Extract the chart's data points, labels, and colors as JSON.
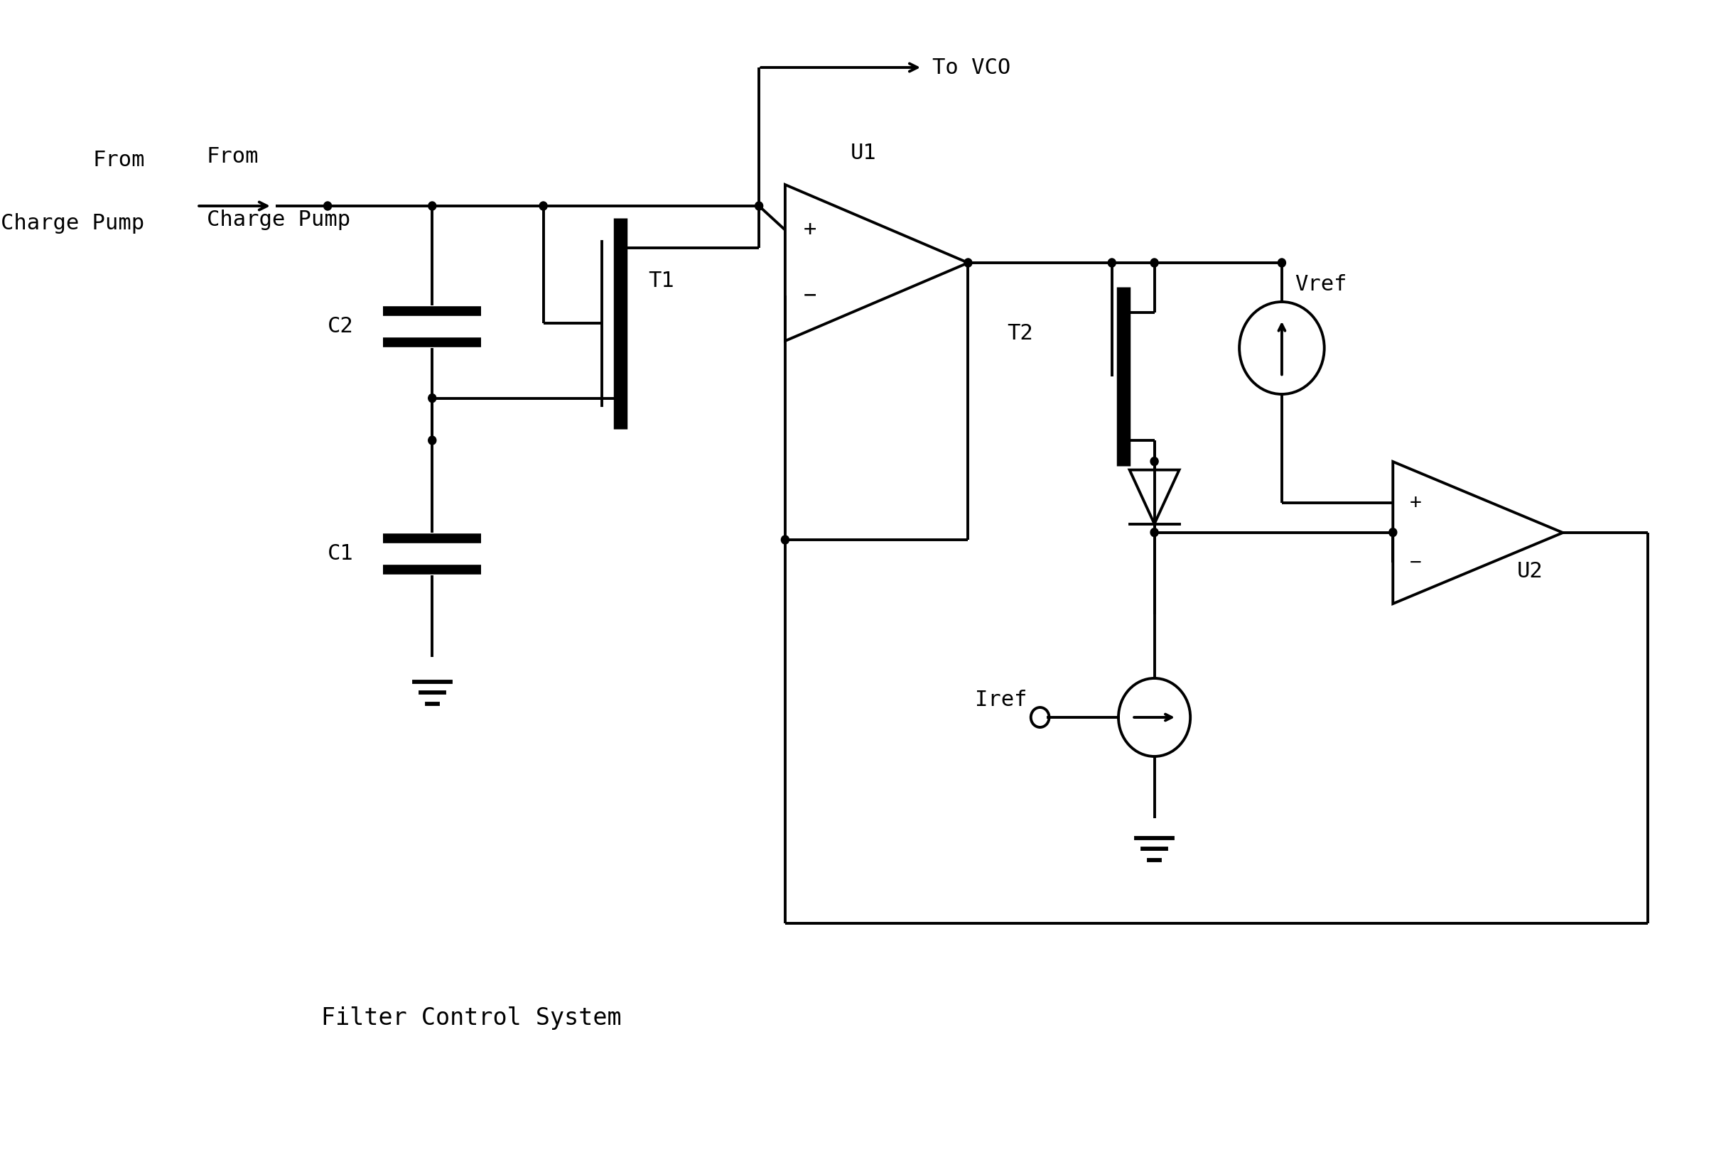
{
  "background_color": "#ffffff",
  "line_color": "#000000",
  "lw": 2.8,
  "dot_r": 6.0,
  "labels": {
    "from_charge_pump_1": "From",
    "from_charge_pump_2": "Charge Pump",
    "to_vco": "To VCO",
    "C2": "C2",
    "C1": "C1",
    "T1": "T1",
    "T2": "T2",
    "U1": "U1",
    "U2": "U2",
    "Vref": "Vref",
    "Iref": "Iref",
    "title": "Filter Control System"
  },
  "font_size_label": 22,
  "font_size_title": 24
}
